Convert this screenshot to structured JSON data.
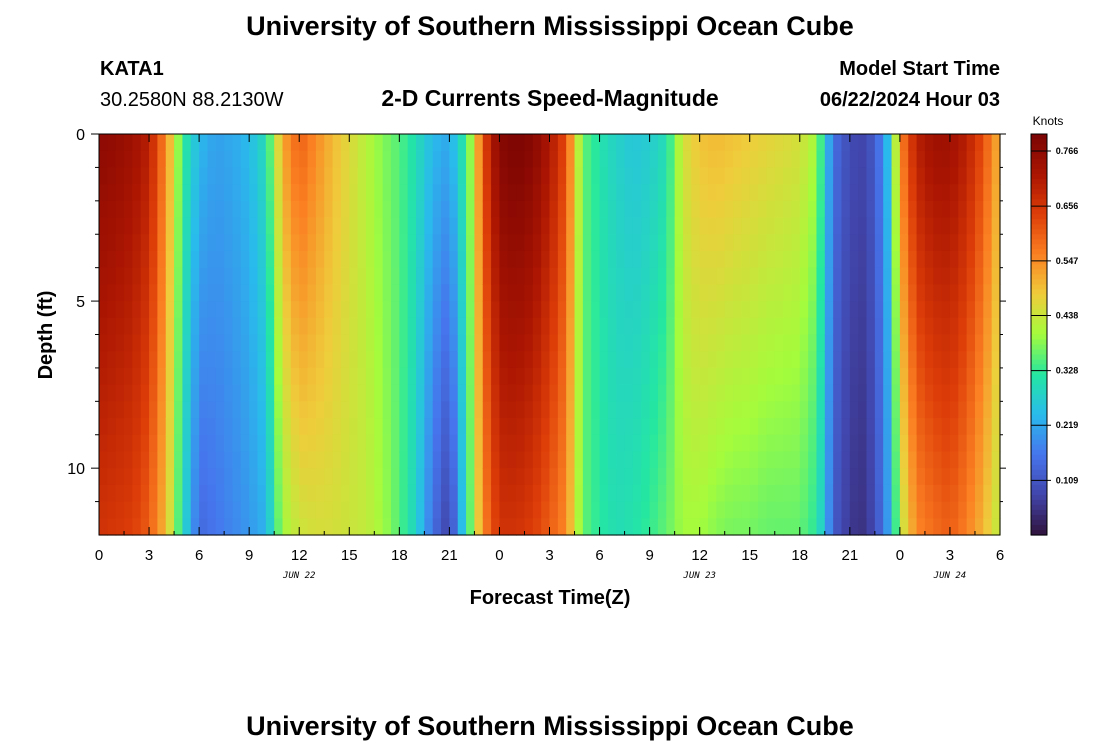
{
  "header": {
    "title": "University of Southern Mississippi Ocean Cube",
    "station": "KATA1",
    "coords": "30.2580N  88.2130W",
    "subtitle": "2-D Currents Speed-Magnitude",
    "model_start_label": "Model Start Time",
    "model_start_value": "06/22/2024 Hour 03"
  },
  "footer": {
    "title": "University of Southern Mississippi Ocean Cube"
  },
  "chart_data": {
    "type": "heatmap",
    "xlabel": "Forecast Time(Z)",
    "ylabel": "Depth (ft)",
    "x_tick_labels": [
      "0",
      "3",
      "6",
      "9",
      "12",
      "15",
      "18",
      "21",
      "0",
      "3",
      "6",
      "9",
      "12",
      "15",
      "18",
      "21",
      "0",
      "3",
      "6"
    ],
    "x_range_hours": [
      0,
      54
    ],
    "x_start_hour_of_day": 0,
    "date_labels": [
      {
        "label": "JUN 22",
        "hour": 12
      },
      {
        "label": "JUN 23",
        "hour": 36
      },
      {
        "label": "JUN 24",
        "hour": 51
      }
    ],
    "y_tick_labels": [
      "0",
      "5",
      "10"
    ],
    "y_range_ft": [
      0,
      12
    ],
    "colorbar": {
      "unit": "Knots",
      "min": 0.0,
      "max": 0.8,
      "tick_labels": [
        "0.766",
        "0.656",
        "0.547",
        "0.438",
        "0.328",
        "0.219",
        "0.109"
      ],
      "tick_values": [
        0.766,
        0.656,
        0.547,
        0.438,
        0.328,
        0.219,
        0.109
      ],
      "colormap": "turbo"
    },
    "speed_profile_knots": {
      "hours": [
        0,
        1,
        2,
        3,
        4,
        4.5,
        5,
        6,
        7,
        8,
        9,
        10,
        11,
        12,
        13,
        14,
        15,
        16,
        17,
        18,
        19,
        20,
        21,
        22,
        22.5,
        23,
        24,
        25,
        26,
        27,
        28,
        28.5,
        29,
        30,
        31,
        32,
        33,
        34,
        35,
        36,
        37,
        38,
        39,
        40,
        41,
        42,
        43,
        43.5,
        44,
        45,
        46,
        47,
        47.5,
        48,
        49,
        50,
        51,
        52,
        53,
        54
      ],
      "surface": [
        0.77,
        0.76,
        0.74,
        0.7,
        0.55,
        0.45,
        0.33,
        0.24,
        0.21,
        0.22,
        0.24,
        0.3,
        0.52,
        0.6,
        0.55,
        0.5,
        0.46,
        0.42,
        0.38,
        0.35,
        0.3,
        0.24,
        0.22,
        0.33,
        0.45,
        0.62,
        0.78,
        0.8,
        0.78,
        0.72,
        0.62,
        0.48,
        0.36,
        0.31,
        0.28,
        0.26,
        0.27,
        0.3,
        0.45,
        0.49,
        0.5,
        0.49,
        0.48,
        0.47,
        0.46,
        0.45,
        0.4,
        0.28,
        0.15,
        0.09,
        0.08,
        0.18,
        0.3,
        0.55,
        0.7,
        0.74,
        0.74,
        0.7,
        0.62,
        0.5
      ],
      "bottom": [
        0.66,
        0.65,
        0.64,
        0.6,
        0.5,
        0.4,
        0.3,
        0.14,
        0.16,
        0.18,
        0.2,
        0.23,
        0.4,
        0.44,
        0.45,
        0.45,
        0.44,
        0.43,
        0.4,
        0.35,
        0.28,
        0.15,
        0.07,
        0.3,
        0.42,
        0.55,
        0.66,
        0.66,
        0.64,
        0.6,
        0.55,
        0.45,
        0.36,
        0.32,
        0.3,
        0.31,
        0.33,
        0.36,
        0.4,
        0.4,
        0.38,
        0.37,
        0.37,
        0.36,
        0.36,
        0.36,
        0.32,
        0.25,
        0.12,
        0.06,
        0.05,
        0.15,
        0.25,
        0.42,
        0.55,
        0.58,
        0.6,
        0.56,
        0.5,
        0.42
      ]
    }
  }
}
